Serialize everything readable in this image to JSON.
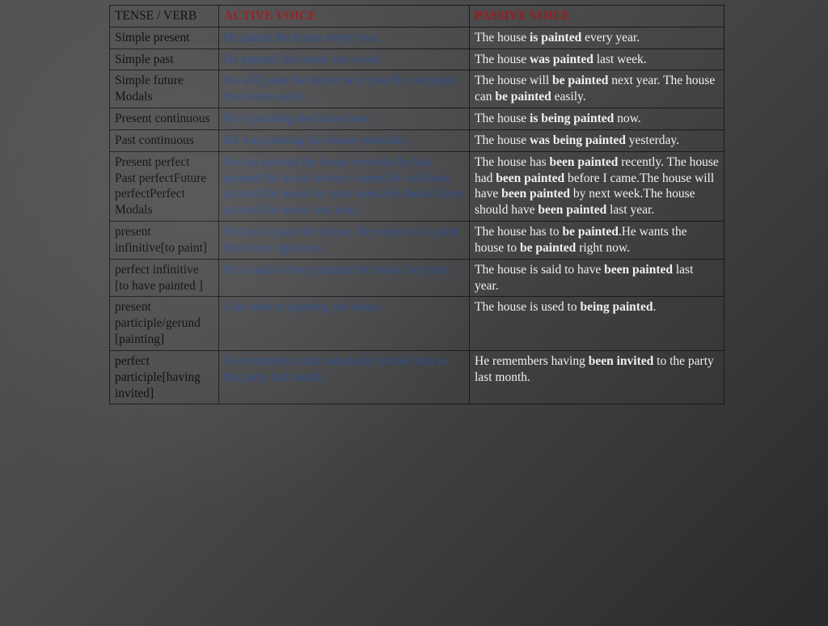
{
  "colors": {
    "header_accent": "#9b1b1b",
    "tense_text": "#0a0a0a",
    "active_text": "#2a4a8a",
    "passive_text": "#f0f0f0",
    "border": "#1a1a1a",
    "bg_gradient_from": "#525254",
    "bg_gradient_to": "#2a2a2c"
  },
  "table": {
    "header": {
      "tense": "TENSE / VERB",
      "active": "ACTIVE VOICE",
      "passive": "PASSIVE VOICE"
    },
    "rows": [
      {
        "tense": "Simple present",
        "active": "He paints the house every year.",
        "passive_pre": "The house ",
        "passive_bold": "is painted",
        "passive_post": " every year."
      },
      {
        "tense": "Simple past",
        "active": "He painted the house last week.",
        "passive_pre": "The house ",
        "passive_bold": "was painted",
        "passive_post": " last week."
      },
      {
        "tense": "Simple future Modals",
        "active": "He will paint the house next year.He can paint the house easily.",
        "passive_pre": "The house will ",
        "passive_bold": "be painted",
        "passive_post": " next year. The house can ",
        "passive_bold2": "be painted",
        "passive_post2": " easily."
      },
      {
        "tense": "Present continuous",
        "active": "He is painting the house now.",
        "passive_pre": "The house ",
        "passive_bold": "is being painted",
        "passive_post": " now."
      },
      {
        "tense": "Past continuous",
        "active": "He was painting the house yesterday.",
        "passive_pre": "The house ",
        "passive_bold": "was being painted",
        "passive_post": " yesterday."
      },
      {
        "tense": "Present perfect Past perfectFuture perfectPerfect Modals",
        "active": "He has painted the house recently.He had painted the house before I came.He will have painted the house by next week.He should have painted the house last year.",
        "passive_pre": "The house has ",
        "passive_bold": "been painted",
        "passive_post": " recently. The house had ",
        "passive_bold2": "been painted",
        "passive_post2": " before I came.The house will have ",
        "passive_bold3": "been painted",
        "passive_post3": " by next week.The house should have ",
        "passive_bold4": "been painted",
        "passive_post4": " last year."
      },
      {
        "tense": "present infinitive",
        "tense_bracket": "[to paint]",
        "active": "He has to paint the house. He wants us to paint the house right now.",
        "passive_pre": "The house has to ",
        "passive_bold": "be painted",
        "passive_post": ".He wants the house to ",
        "passive_bold2": "be painted",
        "passive_post2": " right now."
      },
      {
        "tense": "perfect infinitive ",
        "tense_bracket": "[to have painted ]",
        "active": "He is said to have painted the house last year.",
        "passive_pre": "The house is said to have ",
        "passive_bold": "been painted",
        "passive_post": " last year."
      },
      {
        "tense": "present participle/gerund ",
        "tense_bracket": "[painting]",
        "active": "I am used to painting the house.",
        "passive_pre": "The house is used to ",
        "passive_bold": "being painted",
        "passive_post": "."
      },
      {
        "tense": "perfect participle",
        "tense_bracket": "[having invited]",
        "active": "He remembers that somebody invited him to the party last month.",
        "passive_pre": "He remembers having ",
        "passive_bold": "been invited",
        "passive_post": " to the party last month."
      }
    ]
  }
}
